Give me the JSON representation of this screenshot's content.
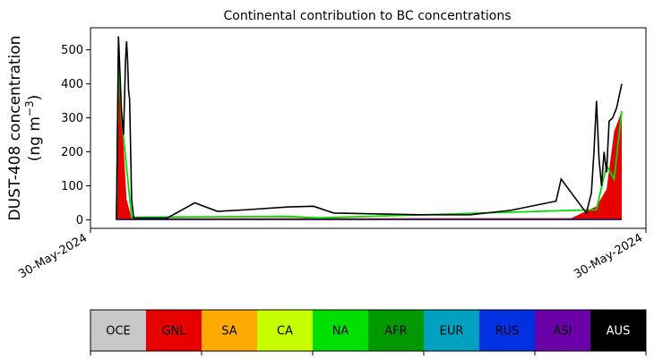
{
  "chart_data": {
    "type": "area",
    "title": "Continental contribution to BC concentrations",
    "ylabel_line1": "DUST-408 concentration",
    "ylabel_line2_prefix": "(ng m",
    "ylabel_line2_sup": "−3",
    "ylabel_line2_suffix": ")",
    "ylim": [
      -25,
      565
    ],
    "yticks": [
      0,
      100,
      200,
      300,
      400,
      500
    ],
    "x_tick_labels": [
      "30-May-2024",
      "30-May-2024"
    ],
    "grid": false,
    "series": [
      {
        "name": "AUS",
        "color": "#000000",
        "total_peaks": [
          [
            0.0,
            0
          ],
          [
            0.004,
            540
          ],
          [
            0.01,
            320
          ],
          [
            0.014,
            250
          ],
          [
            0.018,
            470
          ],
          [
            0.02,
            525
          ],
          [
            0.022,
            470
          ],
          [
            0.024,
            380
          ],
          [
            0.026,
            355
          ],
          [
            0.03,
            60
          ],
          [
            0.034,
            5
          ],
          [
            0.1,
            5
          ],
          [
            0.155,
            50
          ],
          [
            0.2,
            25
          ],
          [
            0.26,
            30
          ],
          [
            0.34,
            38
          ],
          [
            0.39,
            40
          ],
          [
            0.43,
            20
          ],
          [
            0.5,
            18
          ],
          [
            0.6,
            15
          ],
          [
            0.7,
            15
          ],
          [
            0.78,
            28
          ],
          [
            0.87,
            55
          ],
          [
            0.88,
            120
          ],
          [
            0.93,
            20
          ],
          [
            0.94,
            80
          ],
          [
            0.945,
            200
          ],
          [
            0.95,
            350
          ],
          [
            0.955,
            180
          ],
          [
            0.96,
            100
          ],
          [
            0.965,
            200
          ],
          [
            0.97,
            140
          ],
          [
            0.975,
            290
          ],
          [
            0.982,
            300
          ],
          [
            0.99,
            330
          ],
          [
            1.0,
            400
          ]
        ]
      },
      {
        "name": "GNL",
        "color": "#e60000",
        "total_peaks": [
          [
            0.0,
            0
          ],
          [
            0.004,
            440
          ],
          [
            0.01,
            320
          ],
          [
            0.02,
            60
          ],
          [
            0.03,
            5
          ],
          [
            0.9,
            5
          ],
          [
            0.95,
            40
          ],
          [
            0.97,
            90
          ],
          [
            0.985,
            260
          ],
          [
            1.0,
            320
          ]
        ]
      },
      {
        "name": "NA",
        "color": "#00e000",
        "total_peaks": [
          [
            0.0,
            0
          ],
          [
            0.004,
            490
          ],
          [
            0.01,
            300
          ],
          [
            0.03,
            8
          ],
          [
            0.34,
            10
          ],
          [
            0.4,
            6
          ],
          [
            0.95,
            30
          ],
          [
            0.97,
            160
          ],
          [
            0.985,
            120
          ],
          [
            1.0,
            320
          ]
        ]
      }
    ]
  },
  "legend": {
    "items": [
      {
        "label": "OCE",
        "color": "#c8c8c8",
        "text_color": "#000000"
      },
      {
        "label": "GNL",
        "color": "#e60000",
        "text_color": "#000000"
      },
      {
        "label": "SA",
        "color": "#ffaa00",
        "text_color": "#000000"
      },
      {
        "label": "CA",
        "color": "#c8ff00",
        "text_color": "#000000"
      },
      {
        "label": "NA",
        "color": "#00e000",
        "text_color": "#000000"
      },
      {
        "label": "AFR",
        "color": "#009a00",
        "text_color": "#000000"
      },
      {
        "label": "EUR",
        "color": "#00a0c0",
        "text_color": "#000000"
      },
      {
        "label": "RUS",
        "color": "#0030e0",
        "text_color": "#000000"
      },
      {
        "label": "ASI",
        "color": "#6a00a8",
        "text_color": "#000000"
      },
      {
        "label": "AUS",
        "color": "#000000",
        "text_color": "#ffffff"
      }
    ]
  }
}
